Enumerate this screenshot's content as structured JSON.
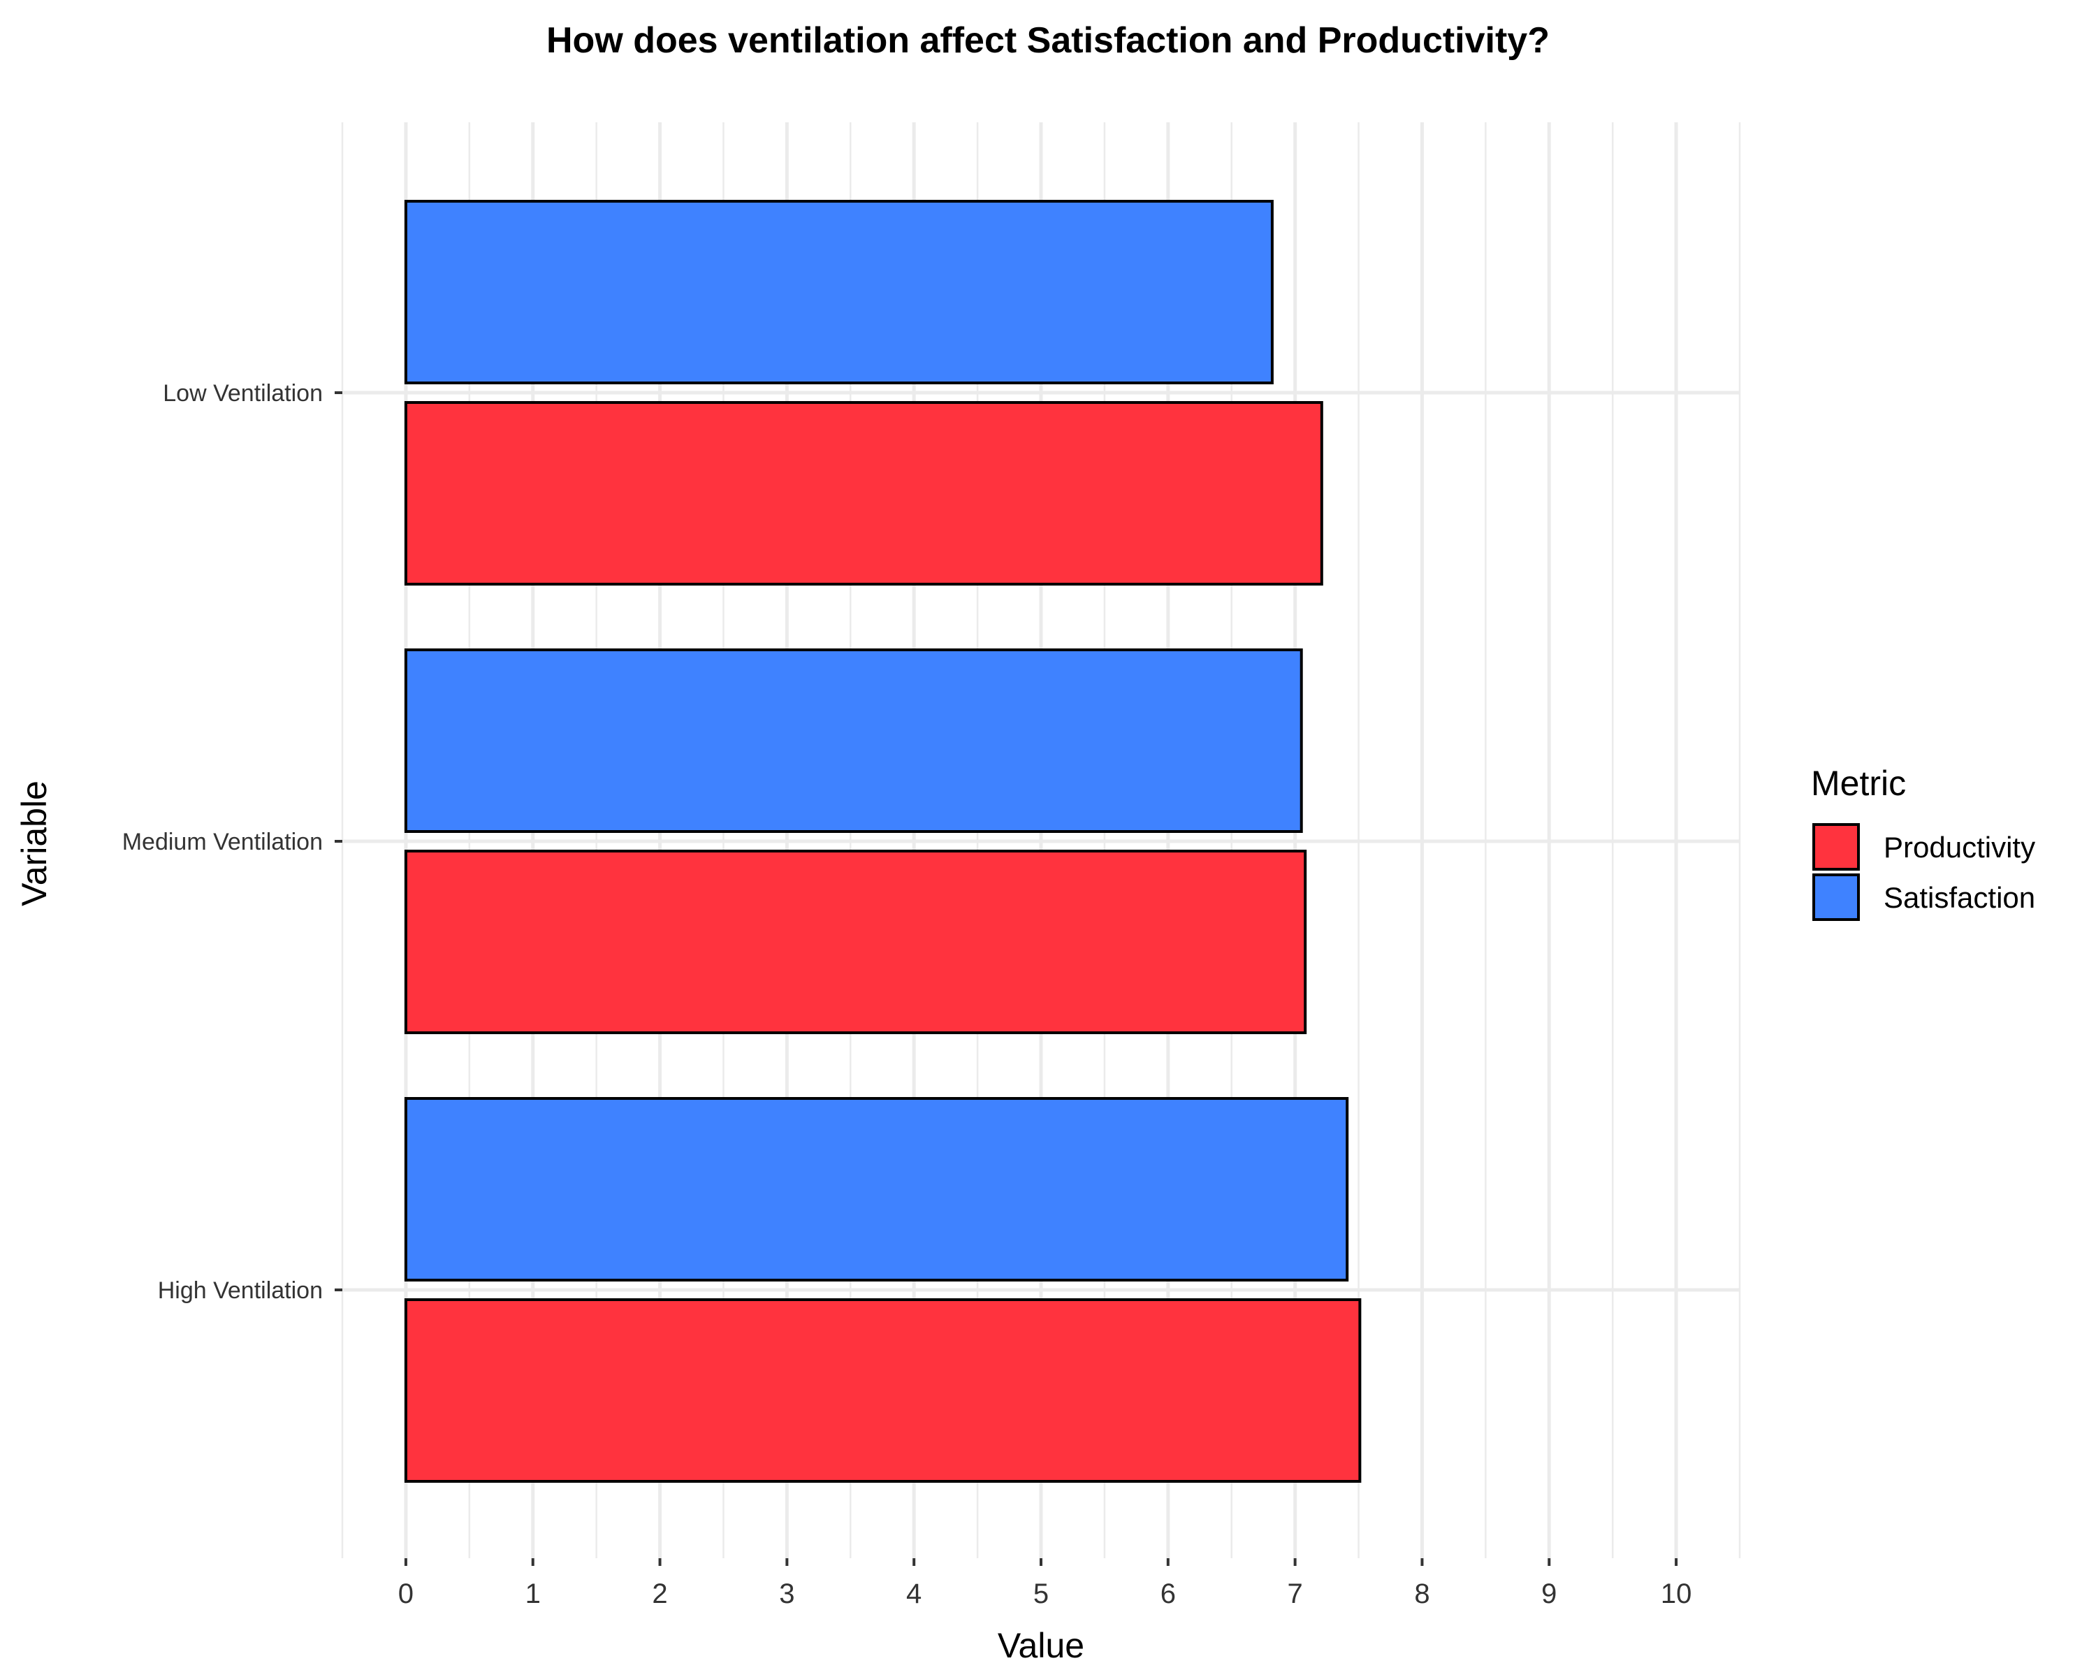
{
  "chart_data": {
    "type": "bar",
    "orientation": "horizontal",
    "title": "How does ventilation affect Satisfaction and Productivity?",
    "xlabel": "Value",
    "ylabel": "Variable",
    "categories": [
      "Low Ventilation",
      "Medium Ventilation",
      "High Ventilation"
    ],
    "series": [
      {
        "name": "Satisfaction",
        "color": "#3f82ff",
        "values": [
          6.82,
          7.05,
          7.41
        ]
      },
      {
        "name": "Productivity",
        "color": "#ff333e",
        "values": [
          7.21,
          7.08,
          7.51
        ]
      }
    ],
    "xlim": [
      -0.5,
      10.5
    ],
    "x_ticks": [
      0,
      1,
      2,
      3,
      4,
      5,
      6,
      7,
      8,
      9,
      10
    ],
    "legend": {
      "title": "Metric",
      "position": "right",
      "entries": [
        {
          "label": "Productivity",
          "color": "#ff333e"
        },
        {
          "label": "Satisfaction",
          "color": "#3f82ff"
        }
      ]
    },
    "grid": true
  }
}
